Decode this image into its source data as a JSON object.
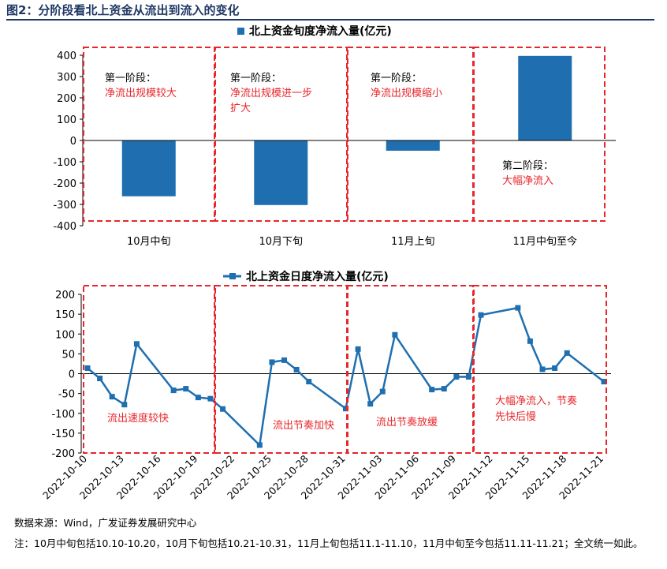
{
  "figure_title": "图2：分阶段看北上资金从流出到流入的变化",
  "chart_data": [
    {
      "type": "bar",
      "title": "北上资金旬度净流入量(亿元)",
      "legend": "北上资金旬度净流入量(亿元)",
      "legend_position": "top",
      "categories": [
        "10月中旬",
        "10月下旬",
        "11月上旬",
        "11月中旬至今"
      ],
      "series": [
        {
          "name": "北上资金旬度净流入量(亿元)",
          "values": [
            -262,
            -303,
            -48,
            397
          ]
        }
      ],
      "yticks": [
        400,
        300,
        200,
        100,
        0,
        -100,
        -200,
        -300,
        -400
      ],
      "ylim": [
        -400,
        400
      ],
      "grid": false,
      "color": "#1f6fb0",
      "annotations": [
        {
          "line1": "第一阶段：",
          "line2": "净流出规模较大",
          "line3": ""
        },
        {
          "line1": "第一阶段：",
          "line2": "净流出规模进一步",
          "line3": "扩大"
        },
        {
          "line1": "第一阶段：",
          "line2": "净流出规模缩小",
          "line3": ""
        },
        {
          "line1": "第二阶段：",
          "line2": "大幅净流入",
          "line3": ""
        }
      ]
    },
    {
      "type": "line",
      "title": "北上资金日度净流入量(亿元)",
      "legend": "北上资金日度净流入量(亿元)",
      "legend_position": "top",
      "x": [
        "2022-10-10",
        "2022-10-11",
        "2022-10-12",
        "2022-10-13",
        "2022-10-14",
        "2022-10-17",
        "2022-10-18",
        "2022-10-19",
        "2022-10-20",
        "2022-10-21",
        "2022-10-24",
        "2022-10-25",
        "2022-10-26",
        "2022-10-27",
        "2022-10-28",
        "2022-10-31",
        "2022-11-01",
        "2022-11-02",
        "2022-11-03",
        "2022-11-04",
        "2022-11-07",
        "2022-11-08",
        "2022-11-09",
        "2022-11-10",
        "2022-11-11",
        "2022-11-14",
        "2022-11-15",
        "2022-11-16",
        "2022-11-17",
        "2022-11-18",
        "2022-11-21"
      ],
      "series": [
        {
          "name": "北上资金日度净流入量(亿元)",
          "values": [
            14,
            -12,
            -58,
            -78,
            75,
            -42,
            -38,
            -60,
            -63,
            -89,
            -180,
            29,
            34,
            10,
            -20,
            -88,
            62,
            -76,
            -45,
            98,
            -40,
            -38,
            -8,
            -8,
            148,
            166,
            82,
            11,
            14,
            52,
            -20
          ]
        }
      ],
      "xticks": [
        "2022-10-10",
        "2022-10-13",
        "2022-10-16",
        "2022-10-19",
        "2022-10-22",
        "2022-10-25",
        "2022-10-28",
        "2022-10-31",
        "2022-11-03",
        "2022-11-06",
        "2022-11-09",
        "2022-11-12",
        "2022-11-15",
        "2022-11-18",
        "2022-11-21"
      ],
      "yticks": [
        200,
        150,
        100,
        50,
        0,
        -50,
        -100,
        -150,
        -200
      ],
      "ylim": [
        -200,
        200
      ],
      "grid": false,
      "color": "#1f6fb0",
      "annotations": [
        {
          "line1": "流出速度较快",
          "line2": ""
        },
        {
          "line1": "流出节奏加快",
          "line2": ""
        },
        {
          "line1": "流出节奏放缓",
          "line2": ""
        },
        {
          "line1": "大幅净流入，节奏",
          "line2": "先快后慢"
        }
      ]
    }
  ],
  "source_note": "数据来源：Wind，广发证券发展研究中心",
  "footnote": "注：10月中旬包括10.10-10.20，10月下旬包括10.21-10.31，11月上旬包括11.1-11.10，11月中旬至今包括11.11-11.21；全文统一如此。"
}
